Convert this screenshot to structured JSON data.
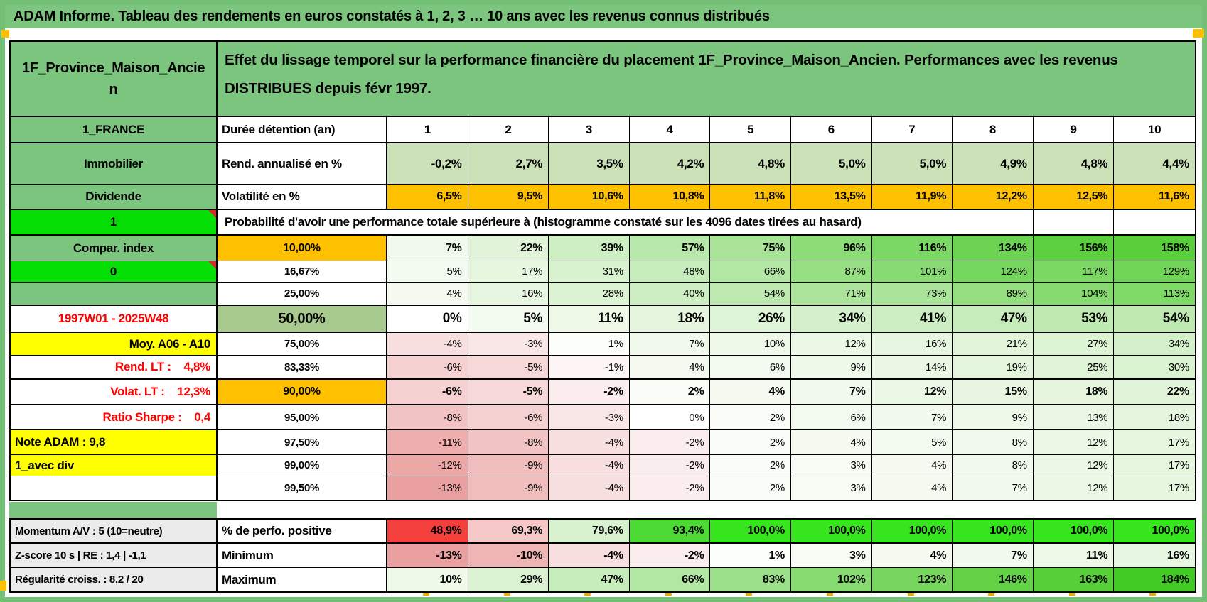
{
  "window": {
    "title": "ADAM Informe. Tableau des rendements en euros constatés à 1, 2, 3 … 10 ans avec les revenus connus distribués"
  },
  "header": {
    "subject": "1F_Province_Maison_Ancien",
    "description": "Effet du lissage temporel sur la performance financière du placement 1F_Province_Maison_Ancien. Performances avec les revenus DISTRIBUES depuis févr 1997."
  },
  "colors": {
    "frame_green": "#74c077",
    "header_green": "#7cc57e",
    "bright_green": "#06df06",
    "orange": "#ffc000",
    "yellow": "#ffff00",
    "gray": "#ebebeb",
    "rend_row_green": "#cbe1b8",
    "median_label_green": "#a9ca8e",
    "red_text": "#ff0000",
    "alert_red_fill": "#f4403c",
    "full_green_fill": "#37e51e"
  },
  "grid": {
    "rows": [
      {
        "id": "years",
        "left": {
          "text": "1_FRANCE",
          "bg": "#7cc57e"
        },
        "label": {
          "text": "Durée détention (an)",
          "bg": "#ffffff"
        },
        "cells": [
          {
            "v": "1"
          },
          {
            "v": "2"
          },
          {
            "v": "3"
          },
          {
            "v": "4"
          },
          {
            "v": "5"
          },
          {
            "v": "6"
          },
          {
            "v": "7"
          },
          {
            "v": "8"
          },
          {
            "v": "9"
          },
          {
            "v": "10"
          }
        ]
      },
      {
        "id": "rend",
        "left": {
          "text": "Immobilier",
          "bg": "#7cc57e"
        },
        "label": {
          "text": "Rend. annualisé en %",
          "bg": "#ffffff"
        },
        "cells": [
          {
            "v": "-0,2%",
            "bg": "#cbe1b8"
          },
          {
            "v": "2,7%",
            "bg": "#cbe1b8"
          },
          {
            "v": "3,5%",
            "bg": "#cbe1b8"
          },
          {
            "v": "4,2%",
            "bg": "#cbe1b8"
          },
          {
            "v": "4,8%",
            "bg": "#cbe1b8"
          },
          {
            "v": "5,0%",
            "bg": "#cbe1b8"
          },
          {
            "v": "5,0%",
            "bg": "#cbe1b8"
          },
          {
            "v": "4,9%",
            "bg": "#cbe1b8"
          },
          {
            "v": "4,8%",
            "bg": "#cbe1b8"
          },
          {
            "v": "4,4%",
            "bg": "#cbe1b8"
          }
        ]
      },
      {
        "id": "volat",
        "left": {
          "text": "Dividende",
          "bg": "#7cc57e"
        },
        "label": {
          "text": "Volatilité en %",
          "bg": "#ffffff"
        },
        "cells": [
          {
            "v": "6,5%",
            "bg": "#ffc000"
          },
          {
            "v": "9,5%",
            "bg": "#ffc000"
          },
          {
            "v": "10,6%",
            "bg": "#ffc000"
          },
          {
            "v": "10,8%",
            "bg": "#ffc000"
          },
          {
            "v": "11,8%",
            "bg": "#ffc000"
          },
          {
            "v": "13,5%",
            "bg": "#ffc000"
          },
          {
            "v": "11,9%",
            "bg": "#ffc000"
          },
          {
            "v": "12,2%",
            "bg": "#ffc000"
          },
          {
            "v": "12,5%",
            "bg": "#ffc000"
          },
          {
            "v": "11,6%",
            "bg": "#ffc000"
          }
        ]
      },
      {
        "id": "prob",
        "left": {
          "text": "1",
          "bg": "#06df06",
          "marker": true
        },
        "banner": "Probabilité d'avoir une performance totale supérieure à (histogramme constaté sur les 4096 dates tirées au hasard)"
      },
      {
        "id": "p10",
        "left": {
          "text": "Compar. index",
          "bg": "#7cc57e"
        },
        "label": {
          "text": "10,00%",
          "bg": "#ffc000"
        },
        "cells": [
          {
            "v": "7%",
            "bg": "#f1f9ec"
          },
          {
            "v": "22%",
            "bg": "#e1f4da"
          },
          {
            "v": "39%",
            "bg": "#ceeec4"
          },
          {
            "v": "57%",
            "bg": "#b9e8ac"
          },
          {
            "v": "75%",
            "bg": "#a8e397"
          },
          {
            "v": "96%",
            "bg": "#8cdc77"
          },
          {
            "v": "116%",
            "bg": "#7cd864"
          },
          {
            "v": "134%",
            "bg": "#6dd453"
          },
          {
            "v": "156%",
            "bg": "#5bcf3d"
          },
          {
            "v": "158%",
            "bg": "#59cf3b"
          }
        ]
      },
      {
        "id": "p1667",
        "left": {
          "text": "0",
          "bg": "#06df06",
          "marker": true
        },
        "label": {
          "text": "16,67%",
          "bg": "#ffffff"
        },
        "cells": [
          {
            "v": "5%",
            "bg": "#f3faef"
          },
          {
            "v": "17%",
            "bg": "#e6f6df"
          },
          {
            "v": "31%",
            "bg": "#d8f1cf"
          },
          {
            "v": "48%",
            "bg": "#c5ecba"
          },
          {
            "v": "66%",
            "bg": "#b2e6a3"
          },
          {
            "v": "87%",
            "bg": "#97df83"
          },
          {
            "v": "101%",
            "bg": "#88db73"
          },
          {
            "v": "124%",
            "bg": "#75d65d"
          },
          {
            "v": "117%",
            "bg": "#7bd863"
          },
          {
            "v": "129%",
            "bg": "#70d557"
          }
        ]
      },
      {
        "id": "p25",
        "left": {
          "text": "",
          "bg": "#7cc57e"
        },
        "label": {
          "text": "25,00%",
          "bg": "#ffffff"
        },
        "cells": [
          {
            "v": "4%",
            "bg": "#f5faf1"
          },
          {
            "v": "16%",
            "bg": "#e7f6e0"
          },
          {
            "v": "28%",
            "bg": "#dbf3d3"
          },
          {
            "v": "40%",
            "bg": "#cdeec2"
          },
          {
            "v": "54%",
            "bg": "#bde9b0"
          },
          {
            "v": "71%",
            "bg": "#ace49c"
          },
          {
            "v": "73%",
            "bg": "#aae39a"
          },
          {
            "v": "89%",
            "bg": "#94de80"
          },
          {
            "v": "104%",
            "bg": "#86da70"
          },
          {
            "v": "113%",
            "bg": "#7ed966"
          }
        ]
      },
      {
        "id": "p50",
        "left": {
          "text": "1997W01 - 2025W48",
          "bg": "#ffffff",
          "fg": "#ff0000"
        },
        "label": {
          "text": "50,00%",
          "bg": "#a9ca8e"
        },
        "cells": [
          {
            "v": "0%",
            "bg": "#ffffff"
          },
          {
            "v": "5%",
            "bg": "#f3faef"
          },
          {
            "v": "11%",
            "bg": "#edf8e7"
          },
          {
            "v": "18%",
            "bg": "#e5f5de"
          },
          {
            "v": "26%",
            "bg": "#def4d6"
          },
          {
            "v": "34%",
            "bg": "#d3f0ca"
          },
          {
            "v": "41%",
            "bg": "#ccedc1"
          },
          {
            "v": "47%",
            "bg": "#c6ecbb"
          },
          {
            "v": "53%",
            "bg": "#bee9b1"
          },
          {
            "v": "54%",
            "bg": "#bde9b0"
          }
        ]
      },
      {
        "id": "p75",
        "left": {
          "text": "Moy. A06 - A10",
          "bg": "#ffff00"
        },
        "label": {
          "text": "75,00%",
          "bg": "#ffffff"
        },
        "cells": [
          {
            "v": "-4%",
            "bg": "#f8dfdf"
          },
          {
            "v": "-3%",
            "bg": "#f9e6e6"
          },
          {
            "v": "1%",
            "bg": "#fcfefa"
          },
          {
            "v": "7%",
            "bg": "#f1f9ec"
          },
          {
            "v": "10%",
            "bg": "#eef9e9"
          },
          {
            "v": "12%",
            "bg": "#ecf8e6"
          },
          {
            "v": "16%",
            "bg": "#e7f6e0"
          },
          {
            "v": "21%",
            "bg": "#e2f5db"
          },
          {
            "v": "27%",
            "bg": "#dcf3d4"
          },
          {
            "v": "34%",
            "bg": "#d3f0ca"
          }
        ]
      },
      {
        "id": "p8333",
        "left": {
          "text": "Rend. LT :    4,8%",
          "bg": "#ffffff",
          "fg": "#ff0000"
        },
        "label": {
          "text": "83,33%",
          "bg": "#ffffff"
        },
        "cells": [
          {
            "v": "-6%",
            "bg": "#f5d1d1"
          },
          {
            "v": "-5%",
            "bg": "#f6d8d8"
          },
          {
            "v": "-1%",
            "bg": "#fdf5f5"
          },
          {
            "v": "4%",
            "bg": "#f5faf1"
          },
          {
            "v": "6%",
            "bg": "#f2f9ee"
          },
          {
            "v": "9%",
            "bg": "#eff9ea"
          },
          {
            "v": "14%",
            "bg": "#e9f7e3"
          },
          {
            "v": "19%",
            "bg": "#e4f5dd"
          },
          {
            "v": "25%",
            "bg": "#dff4d7"
          },
          {
            "v": "30%",
            "bg": "#d9f2d0"
          }
        ]
      },
      {
        "id": "p90",
        "left": {
          "text": "Volat. LT :    12,3%",
          "bg": "#ffffff",
          "fg": "#ff0000"
        },
        "label": {
          "text": "90,00%",
          "bg": "#ffc000"
        },
        "cells": [
          {
            "v": "-6%",
            "bg": "#f5d1d1"
          },
          {
            "v": "-5%",
            "bg": "#f6d8d8"
          },
          {
            "v": "-2%",
            "bg": "#fbeded"
          },
          {
            "v": "2%",
            "bg": "#fafdf7"
          },
          {
            "v": "4%",
            "bg": "#f5faf1"
          },
          {
            "v": "7%",
            "bg": "#f1f9ec"
          },
          {
            "v": "12%",
            "bg": "#ecf8e6"
          },
          {
            "v": "15%",
            "bg": "#e8f6e1"
          },
          {
            "v": "18%",
            "bg": "#e5f5de"
          },
          {
            "v": "22%",
            "bg": "#e1f4da"
          }
        ]
      },
      {
        "id": "p95",
        "left": {
          "text": "Ratio Sharpe :    0,4",
          "bg": "#ffffff",
          "fg": "#ff0000"
        },
        "label": {
          "text": "95,00%",
          "bg": "#ffffff"
        },
        "cells": [
          {
            "v": "-8%",
            "bg": "#f2c3c3"
          },
          {
            "v": "-6%",
            "bg": "#f5d1d1"
          },
          {
            "v": "-3%",
            "bg": "#f9e6e6"
          },
          {
            "v": "0%",
            "bg": "#ffffff"
          },
          {
            "v": "2%",
            "bg": "#fafdf7"
          },
          {
            "v": "6%",
            "bg": "#f2f9ee"
          },
          {
            "v": "7%",
            "bg": "#f1f9ec"
          },
          {
            "v": "9%",
            "bg": "#eff9ea"
          },
          {
            "v": "13%",
            "bg": "#eaf7e5"
          },
          {
            "v": "18%",
            "bg": "#e5f5de"
          }
        ]
      },
      {
        "id": "p975",
        "left": {
          "text": "Note ADAM : 9,8",
          "bg": "#ffff00"
        },
        "label": {
          "text": "97,50%",
          "bg": "#ffffff"
        },
        "cells": [
          {
            "v": "-11%",
            "bg": "#eeaeae"
          },
          {
            "v": "-8%",
            "bg": "#f2c3c3"
          },
          {
            "v": "-4%",
            "bg": "#f8dfdf"
          },
          {
            "v": "-2%",
            "bg": "#fbeded"
          },
          {
            "v": "2%",
            "bg": "#fafdf7"
          },
          {
            "v": "4%",
            "bg": "#f5faf1"
          },
          {
            "v": "5%",
            "bg": "#f3faef"
          },
          {
            "v": "8%",
            "bg": "#f0f9eb"
          },
          {
            "v": "12%",
            "bg": "#ecf8e6"
          },
          {
            "v": "17%",
            "bg": "#e6f6df"
          }
        ]
      },
      {
        "id": "p99",
        "left": {
          "text": "1_avec div",
          "bg": "#ffff00"
        },
        "label": {
          "text": "99,00%",
          "bg": "#ffffff"
        },
        "cells": [
          {
            "v": "-12%",
            "bg": "#eca7a7"
          },
          {
            "v": "-9%",
            "bg": "#f0bcbc"
          },
          {
            "v": "-4%",
            "bg": "#f8dfdf"
          },
          {
            "v": "-2%",
            "bg": "#fbeded"
          },
          {
            "v": "2%",
            "bg": "#fafdf7"
          },
          {
            "v": "3%",
            "bg": "#f6fbf3"
          },
          {
            "v": "4%",
            "bg": "#f5faf1"
          },
          {
            "v": "8%",
            "bg": "#f0f9eb"
          },
          {
            "v": "12%",
            "bg": "#ecf8e6"
          },
          {
            "v": "17%",
            "bg": "#e6f6df"
          }
        ]
      },
      {
        "id": "p995",
        "left": {
          "text": "",
          "bg": "#ffffff"
        },
        "label": {
          "text": "99,50%",
          "bg": "#ffffff"
        },
        "cells": [
          {
            "v": "-13%",
            "bg": "#eaa0a0"
          },
          {
            "v": "-9%",
            "bg": "#f0bcbc"
          },
          {
            "v": "-4%",
            "bg": "#f8dfdf"
          },
          {
            "v": "-2%",
            "bg": "#fbeded"
          },
          {
            "v": "2%",
            "bg": "#fafdf7"
          },
          {
            "v": "3%",
            "bg": "#f6fbf3"
          },
          {
            "v": "4%",
            "bg": "#f5faf1"
          },
          {
            "v": "7%",
            "bg": "#f1f9ec"
          },
          {
            "v": "12%",
            "bg": "#ecf8e6"
          },
          {
            "v": "17%",
            "bg": "#e6f6df"
          }
        ]
      }
    ],
    "bottom_rows": [
      {
        "id": "perfo",
        "left": {
          "text": "Momentum A/V : 5 (10=neutre)",
          "bg": "#ebebeb"
        },
        "label": {
          "text": "% de perfo. positive",
          "bg": "#ffffff"
        },
        "cells": [
          {
            "v": "48,9%",
            "bg": "#f4403c"
          },
          {
            "v": "69,3%",
            "bg": "#f6c7c7"
          },
          {
            "v": "79,6%",
            "bg": "#d8f2cf"
          },
          {
            "v": "93,4%",
            "bg": "#4cd934"
          },
          {
            "v": "100,0%",
            "bg": "#37e51e"
          },
          {
            "v": "100,0%",
            "bg": "#37e51e"
          },
          {
            "v": "100,0%",
            "bg": "#37e51e"
          },
          {
            "v": "100,0%",
            "bg": "#37e51e"
          },
          {
            "v": "100,0%",
            "bg": "#37e51e"
          },
          {
            "v": "100,0%",
            "bg": "#37e51e"
          }
        ]
      },
      {
        "id": "min",
        "left": {
          "text": "Z-score 10 s | RE : 1,4 | -1,1",
          "bg": "#ebebeb"
        },
        "label": {
          "text": "Minimum",
          "bg": "#ffffff"
        },
        "cells": [
          {
            "v": "-13%",
            "bg": "#eaa0a0"
          },
          {
            "v": "-10%",
            "bg": "#efb5b5"
          },
          {
            "v": "-4%",
            "bg": "#f8dfdf"
          },
          {
            "v": "-2%",
            "bg": "#fbeded"
          },
          {
            "v": "1%",
            "bg": "#fcfefa"
          },
          {
            "v": "3%",
            "bg": "#f6fbf3"
          },
          {
            "v": "4%",
            "bg": "#f5faf1"
          },
          {
            "v": "7%",
            "bg": "#f1f9ec"
          },
          {
            "v": "11%",
            "bg": "#edf8e7"
          },
          {
            "v": "16%",
            "bg": "#e7f6e0"
          }
        ]
      },
      {
        "id": "max",
        "left": {
          "text": "Régularité croiss. : 8,2 / 20",
          "bg": "#ebebeb"
        },
        "label": {
          "text": "Maximum",
          "bg": "#ffffff"
        },
        "cells": [
          {
            "v": "10%",
            "bg": "#eef9e9"
          },
          {
            "v": "29%",
            "bg": "#daf2d1"
          },
          {
            "v": "47%",
            "bg": "#c6ecbb"
          },
          {
            "v": "66%",
            "bg": "#b2e6a3"
          },
          {
            "v": "83%",
            "bg": "#9ce189"
          },
          {
            "v": "102%",
            "bg": "#87db71"
          },
          {
            "v": "123%",
            "bg": "#76d65e"
          },
          {
            "v": "146%",
            "bg": "#63d247"
          },
          {
            "v": "163%",
            "bg": "#56cf38"
          },
          {
            "v": "184%",
            "bg": "#42cb24"
          }
        ]
      }
    ]
  }
}
